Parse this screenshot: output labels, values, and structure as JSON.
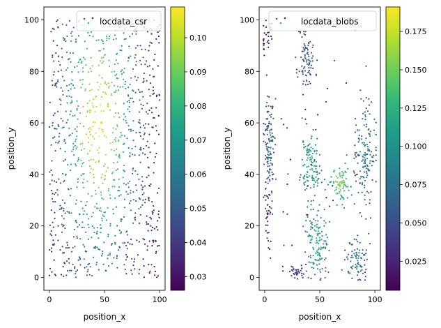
{
  "colormap": {
    "name": "viridis",
    "stops": [
      "#440154",
      "#482878",
      "#3e4989",
      "#31688e",
      "#26828e",
      "#1f9e89",
      "#35b779",
      "#6ece58",
      "#b5de2b",
      "#fde725"
    ]
  },
  "chart_data": [
    {
      "type": "scatter",
      "legend": {
        "label": "locdata_csr",
        "position": "upper right"
      },
      "xlabel": "position_x",
      "ylabel": "position_y",
      "xlim": [
        -5,
        105
      ],
      "ylim": [
        -5,
        105
      ],
      "xticks": [
        0,
        50,
        100
      ],
      "yticks": [
        0,
        20,
        40,
        60,
        80,
        100
      ],
      "colorbar": {
        "range": [
          0.026,
          0.109
        ],
        "ticks": [
          0.03,
          0.04,
          0.05,
          0.06,
          0.07,
          0.08,
          0.09,
          0.1
        ],
        "tick_labels": [
          "0.03",
          "0.04",
          "0.05",
          "0.06",
          "0.07",
          "0.08",
          "0.09",
          "0.10"
        ]
      },
      "description": "approx. 1000 points uniformly distributed in [0,100]x[0,100]; color = local density, highest (~0.105) at center x~45, y~60, lowest (~0.028) at the edges",
      "points": [
        [
          8,
          97
        ],
        [
          22,
          97
        ],
        [
          30,
          98
        ],
        [
          4,
          84
        ],
        [
          12,
          78
        ],
        [
          20,
          70
        ],
        [
          35,
          95
        ],
        [
          45,
          88
        ],
        [
          52,
          92
        ],
        [
          60,
          96
        ],
        [
          70,
          99
        ],
        [
          80,
          90
        ],
        [
          88,
          84
        ],
        [
          95,
          78
        ],
        [
          100,
          98
        ],
        [
          3,
          60
        ],
        [
          10,
          50
        ],
        [
          15,
          40
        ],
        [
          18,
          55
        ],
        [
          25,
          65
        ],
        [
          30,
          75
        ],
        [
          38,
          80
        ],
        [
          42,
          70
        ],
        [
          47,
          60
        ],
        [
          50,
          55
        ],
        [
          55,
          65
        ],
        [
          60,
          72
        ],
        [
          65,
          80
        ],
        [
          70,
          60
        ],
        [
          75,
          50
        ],
        [
          80,
          40
        ],
        [
          85,
          30
        ],
        [
          92,
          20
        ],
        [
          97,
          10
        ],
        [
          2,
          10
        ],
        [
          8,
          20
        ],
        [
          12,
          30
        ],
        [
          20,
          25
        ],
        [
          28,
          15
        ],
        [
          35,
          5
        ],
        [
          42,
          12
        ],
        [
          48,
          22
        ],
        [
          55,
          32
        ],
        [
          62,
          42
        ],
        [
          68,
          52
        ],
        [
          72,
          35
        ],
        [
          78,
          25
        ],
        [
          85,
          15
        ],
        [
          90,
          5
        ],
        [
          40,
          40
        ],
        [
          45,
          45
        ],
        [
          50,
          38
        ],
        [
          35,
          48
        ],
        [
          30,
          52
        ],
        [
          58,
          58
        ],
        [
          63,
          47
        ],
        [
          25,
          35
        ],
        [
          33,
          28
        ],
        [
          47,
          32
        ],
        [
          53,
          27
        ]
      ]
    },
    {
      "type": "scatter",
      "legend": {
        "label": "locdata_blobs",
        "position": "upper right"
      },
      "xlabel": "position_x",
      "ylabel": "position_y",
      "xlim": [
        -5,
        105
      ],
      "ylim": [
        -5,
        105
      ],
      "xticks": [
        0,
        50,
        100
      ],
      "yticks": [
        0,
        20,
        40,
        60,
        80,
        100
      ],
      "colorbar": {
        "range": [
          0.006,
          0.191
        ],
        "ticks": [
          0.025,
          0.05,
          0.075,
          0.1,
          0.125,
          0.15,
          0.175
        ],
        "tick_labels": [
          "0.025",
          "0.050",
          "0.075",
          "0.100",
          "0.125",
          "0.150",
          "0.175"
        ]
      },
      "description": "approx. 1000 points in clusters; color = local density",
      "clusters": [
        {
          "cx": 2,
          "cy": 94,
          "sx": 3.0,
          "sy": 4.5,
          "n": 28,
          "level": 0.015
        },
        {
          "cx": 38,
          "cy": 85,
          "sx": 4.0,
          "sy": 6.5,
          "n": 90,
          "level": 0.065
        },
        {
          "cx": 4,
          "cy": 50,
          "sx": 2.5,
          "sy": 11.0,
          "n": 140,
          "level": 0.072
        },
        {
          "cx": 42,
          "cy": 43,
          "sx": 4.5,
          "sy": 6.5,
          "n": 120,
          "level": 0.128
        },
        {
          "cx": 68,
          "cy": 37,
          "sx": 5.0,
          "sy": 4.0,
          "n": 75,
          "level": 0.16
        },
        {
          "cx": 91,
          "cy": 48,
          "sx": 4.5,
          "sy": 11.0,
          "n": 150,
          "level": 0.09
        },
        {
          "cx": 47,
          "cy": 14,
          "sx": 5.0,
          "sy": 7.0,
          "n": 130,
          "level": 0.125
        },
        {
          "cx": 84,
          "cy": 7,
          "sx": 4.5,
          "sy": 4.5,
          "n": 80,
          "level": 0.085
        },
        {
          "cx": 30,
          "cy": 2,
          "sx": 4.0,
          "sy": 1.5,
          "n": 35,
          "level": 0.045
        },
        {
          "cx": 3,
          "cy": 22,
          "sx": 1.5,
          "sy": 6.0,
          "n": 25,
          "level": 0.03
        }
      ]
    }
  ]
}
